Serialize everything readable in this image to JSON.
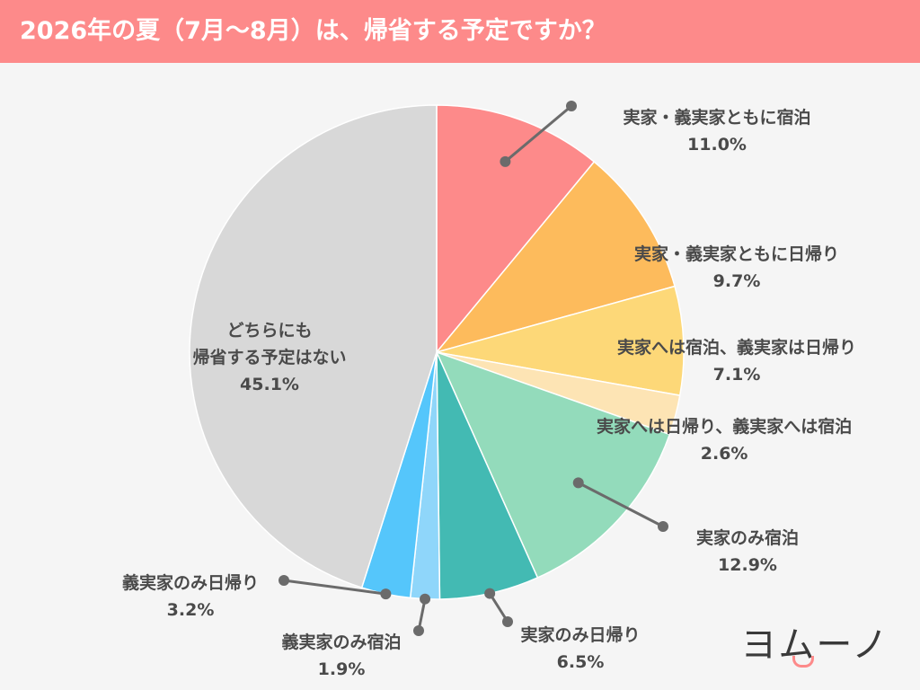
{
  "header": {
    "title": "2026年の夏（7月〜8月）は、帰省する予定ですか？"
  },
  "logo": {
    "text": "ヨムーノ"
  },
  "colors": {
    "header": "#fd8a8a",
    "text": "#4a4a4a",
    "leader": "#6b6b6b",
    "background": "#f5f5f5"
  },
  "chart_data": {
    "type": "pie",
    "title": "2026年の夏（7月〜8月）は、帰省する予定ですか？",
    "start": "12 o'clock",
    "direction": "clockwise",
    "slices": [
      {
        "label": "実家・義実家ともに宿泊",
        "value": 11.0,
        "value_label": "11.0%",
        "color": "#fd8a8a"
      },
      {
        "label": "実家・義実家ともに日帰り",
        "value": 9.7,
        "value_label": "9.7%",
        "color": "#fdbb5c"
      },
      {
        "label": "実家へは宿泊、義実家は日帰り",
        "value": 7.1,
        "value_label": "7.1%",
        "color": "#fdd878"
      },
      {
        "label": "実家へは日帰り、義実家へは宿泊",
        "value": 2.6,
        "value_label": "2.6%",
        "color": "#fde4b4"
      },
      {
        "label": "実家のみ宿泊",
        "value": 12.9,
        "value_label": "12.9%",
        "color": "#93dbbb"
      },
      {
        "label": "実家のみ日帰り",
        "value": 6.5,
        "value_label": "6.5%",
        "color": "#43bab3"
      },
      {
        "label": "義実家のみ宿泊",
        "value": 1.9,
        "value_label": "1.9%",
        "color": "#8fd6fa"
      },
      {
        "label": "義実家のみ日帰り",
        "value": 3.2,
        "value_label": "3.2%",
        "color": "#55c6fb"
      },
      {
        "label": "どちらにも\n帰省する予定はない",
        "value": 45.1,
        "value_label": "45.1%",
        "color": "#d8d8d8"
      }
    ]
  }
}
